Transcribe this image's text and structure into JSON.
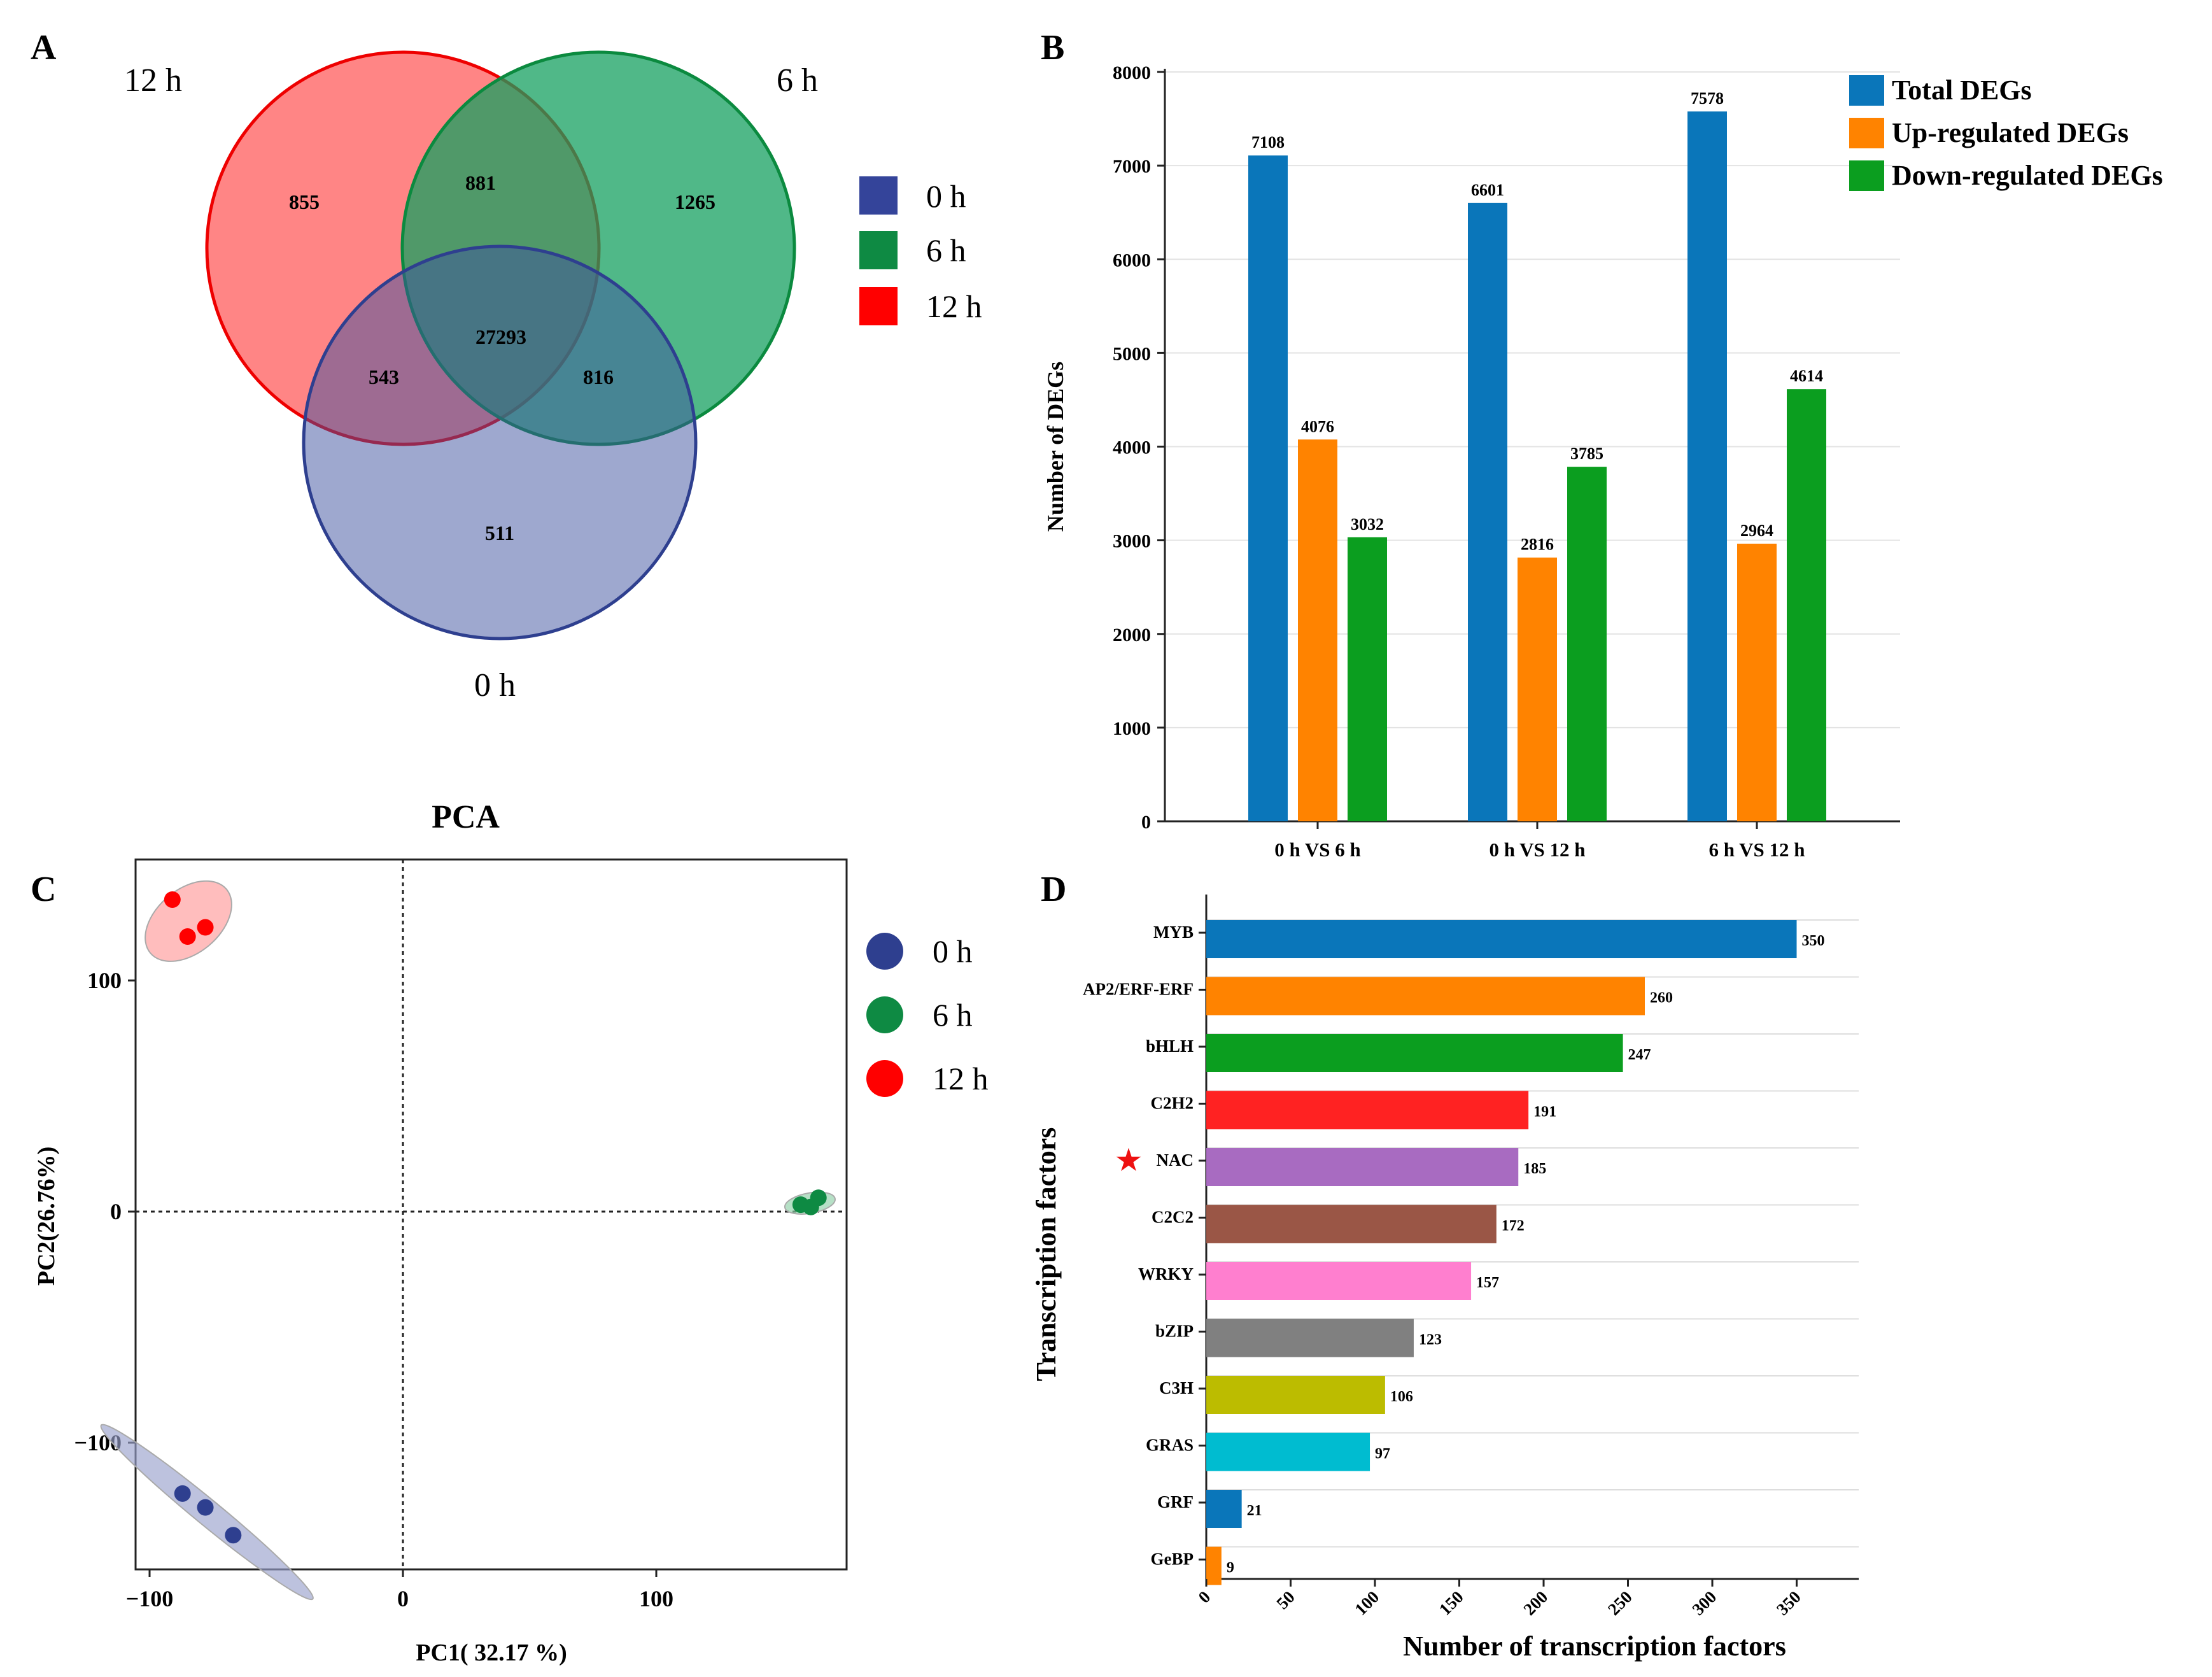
{
  "panels": {
    "a": "A",
    "b": "B",
    "c": "C",
    "d": "D"
  },
  "chart_data": [
    {
      "type": "venn",
      "sets": [
        {
          "name": "12 h",
          "color": "#ff2020"
        },
        {
          "name": "6 h",
          "color": "#119a55"
        },
        {
          "name": "0 h",
          "color": "#34449a"
        }
      ],
      "legend": [
        {
          "label": "0 h",
          "color": "#34449a"
        },
        {
          "label": "6 h",
          "color": "#0e8a43"
        },
        {
          "label": "12 h",
          "color": "#ff0000"
        }
      ],
      "regions": [
        {
          "id": "only_12h",
          "value": "855"
        },
        {
          "id": "12h_6h",
          "value": "881"
        },
        {
          "id": "only_6h",
          "value": "1265"
        },
        {
          "id": "all",
          "value": "27293"
        },
        {
          "id": "12h_0h",
          "value": "543"
        },
        {
          "id": "6h_0h",
          "value": "816"
        },
        {
          "id": "only_0h",
          "value": "511"
        }
      ]
    },
    {
      "type": "bar",
      "ylabel": "Number of DEGs",
      "ylim": [
        0,
        8000
      ],
      "yticks": [
        "0",
        "1000",
        "2000",
        "3000",
        "4000",
        "5000",
        "6000",
        "7000",
        "8000"
      ],
      "categories": [
        "0 h VS 6 h",
        "0 h VS 12 h",
        "6 h VS 12 h"
      ],
      "series": [
        {
          "name": "Total DEGs",
          "color": "#0a76ba",
          "values": [
            7108,
            6601,
            7578
          ]
        },
        {
          "name": "Up-regulated DEGs",
          "color": "#ff8300",
          "values": [
            4076,
            2816,
            2964
          ]
        },
        {
          "name": "Down-regulated DEGs",
          "color": "#0b9e1f",
          "values": [
            3032,
            3785,
            4614
          ]
        }
      ],
      "legend_position": "top-right",
      "grid": true
    },
    {
      "type": "scatter",
      "title": "PCA",
      "xlabel": "PC1( 32.17 %)",
      "ylabel": "PC2(26.76%)",
      "xlim": [
        -105,
        178
      ],
      "ylim": [
        -155,
        152
      ],
      "xticks": [
        "−100",
        "0",
        "100"
      ],
      "yticks": [
        "100",
        "0",
        "−100"
      ],
      "series": [
        {
          "name": "0 h",
          "color": "#2e3f8f",
          "points": [
            [
              -87,
              -122
            ],
            [
              -78,
              -128
            ],
            [
              -67,
              -140
            ]
          ]
        },
        {
          "name": "6 h",
          "color": "#0e8a43",
          "points": [
            [
              157,
              3
            ],
            [
              161,
              2
            ],
            [
              164,
              6
            ]
          ]
        },
        {
          "name": "12 h",
          "color": "#ff0000",
          "points": [
            [
              -91,
              135
            ],
            [
              -85,
              119
            ],
            [
              -78,
              123
            ]
          ]
        }
      ],
      "reference_lines": {
        "x": 0,
        "y": 0,
        "style": "dotted"
      }
    },
    {
      "type": "bar",
      "orientation": "horizontal",
      "xlabel": "Number of transcription factors",
      "ylabel": "Transcription factors",
      "xlim": [
        0,
        385
      ],
      "xticks": [
        "0",
        "50",
        "100",
        "150",
        "200",
        "250",
        "300",
        "350"
      ],
      "marker": {
        "symbol": "★",
        "category": "NAC",
        "color": "#ee1111"
      },
      "categories": [
        "MYB",
        "AP2/ERF-ERF",
        "bHLH",
        "C2H2",
        "NAC",
        "C2C2",
        "WRKY",
        "bZIP",
        "C3H",
        "GRAS",
        "GRF",
        "GeBP"
      ],
      "values": [
        350,
        260,
        247,
        191,
        185,
        172,
        157,
        123,
        106,
        97,
        21,
        9
      ],
      "colors": [
        "#0a76ba",
        "#ff8300",
        "#0b9e1f",
        "#ff2222",
        "#a86bc1",
        "#9a5646",
        "#ff7fcf",
        "#808080",
        "#bcbc00",
        "#00bcd0",
        "#0a76ba",
        "#ff8300"
      ]
    }
  ]
}
